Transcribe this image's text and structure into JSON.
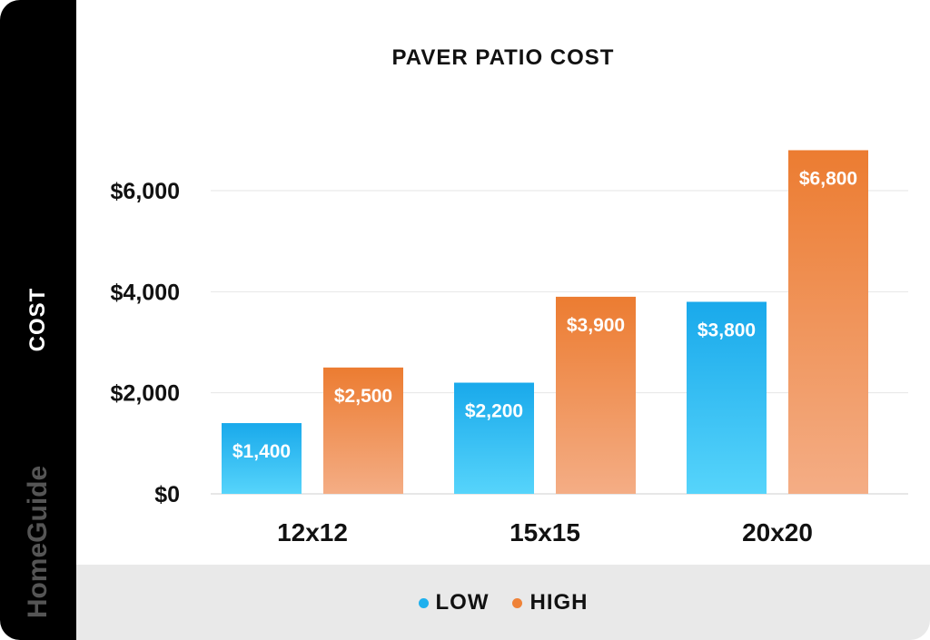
{
  "chart_data": {
    "type": "bar",
    "title": "PAVER PATIO COST",
    "ylabel": "COST",
    "xlabel": "",
    "categories": [
      "12x12",
      "15x15",
      "20x20"
    ],
    "series": [
      {
        "name": "LOW",
        "color": "#1eb0ee",
        "values": [
          1400,
          2200,
          3800
        ],
        "labels": [
          "$1,400",
          "$2,200",
          "$3,800"
        ]
      },
      {
        "name": "HIGH",
        "color": "#ef8238",
        "values": [
          2500,
          3900,
          6800
        ],
        "labels": [
          "$2,500",
          "$3,900",
          "$6,800"
        ]
      }
    ],
    "ylim": [
      0,
      7000
    ],
    "yticks": [
      0,
      2000,
      4000,
      6000
    ],
    "ytick_labels": [
      "$0",
      "$2,000",
      "$4,000",
      "$6,000"
    ],
    "grid": true,
    "legend_position": "bottom-center"
  },
  "brand": "HomeGuide"
}
